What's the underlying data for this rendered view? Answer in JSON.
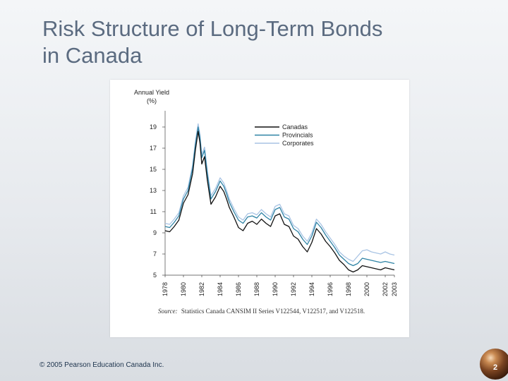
{
  "slide": {
    "title_line1": "Risk Structure of Long-Term Bonds",
    "title_line2": "in Canada",
    "footer": "© 2005 Pearson Education Canada Inc.",
    "page_number": "2"
  },
  "chart_data": {
    "type": "line",
    "title": "",
    "ylabel_line1": "Annual Yield",
    "ylabel_line2": "(%)",
    "xlabel": "",
    "ylim": [
      5,
      20
    ],
    "xlim": [
      1978,
      2003
    ],
    "yticks": [
      5,
      7,
      9,
      11,
      13,
      15,
      17,
      19
    ],
    "xticks": [
      "1978",
      "1980",
      "1982",
      "1984",
      "1986",
      "1988",
      "1990",
      "1992",
      "1994",
      "1996",
      "1998",
      "2000",
      "2002",
      "2003"
    ],
    "legend_position": "top-right",
    "source_label": "Source:",
    "source_text": "Statistics Canada CANSIM II Series V122544, V122517, and V122518.",
    "series": [
      {
        "name": "Canadas",
        "color": "#111111",
        "x": [
          1978,
          1978.5,
          1979,
          1979.5,
          1980,
          1980.5,
          1981,
          1981.3,
          1981.6,
          1981.8,
          1982,
          1982.3,
          1982.6,
          1983,
          1983.5,
          1984,
          1984.4,
          1984.7,
          1985,
          1985.5,
          1986,
          1986.5,
          1987,
          1987.5,
          1988,
          1988.5,
          1989,
          1989.5,
          1990,
          1990.5,
          1991,
          1991.5,
          1992,
          1992.5,
          1993,
          1993.5,
          1994,
          1994.5,
          1995,
          1995.5,
          1996,
          1996.5,
          1997,
          1997.5,
          1998,
          1998.5,
          1999,
          1999.5,
          2000,
          2000.5,
          2001,
          2001.5,
          2002,
          2002.5,
          2003
        ],
        "values": [
          9.2,
          9.1,
          9.6,
          10.2,
          11.8,
          12.6,
          14.6,
          16.8,
          18.6,
          17.5,
          15.5,
          16.2,
          14.0,
          11.7,
          12.4,
          13.4,
          12.9,
          12.2,
          11.4,
          10.5,
          9.5,
          9.2,
          9.9,
          10.1,
          9.8,
          10.3,
          9.9,
          9.6,
          10.6,
          10.8,
          9.8,
          9.6,
          8.7,
          8.4,
          7.7,
          7.2,
          8.1,
          9.4,
          8.9,
          8.2,
          7.7,
          7.1,
          6.4,
          6.0,
          5.5,
          5.3,
          5.5,
          5.9,
          5.8,
          5.7,
          5.6,
          5.5,
          5.7,
          5.6,
          5.5
        ]
      },
      {
        "name": "Provincials",
        "color": "#2e83a5",
        "x": [
          1978,
          1978.5,
          1979,
          1979.5,
          1980,
          1980.5,
          1981,
          1981.3,
          1981.6,
          1981.8,
          1982,
          1982.3,
          1982.6,
          1983,
          1983.5,
          1984,
          1984.4,
          1984.7,
          1985,
          1985.5,
          1986,
          1986.5,
          1987,
          1987.5,
          1988,
          1988.5,
          1989,
          1989.5,
          1990,
          1990.5,
          1991,
          1991.5,
          1992,
          1992.5,
          1993,
          1993.5,
          1994,
          1994.5,
          1995,
          1995.5,
          1996,
          1996.5,
          1997,
          1997.5,
          1998,
          1998.5,
          1999,
          1999.5,
          2000,
          2000.5,
          2001,
          2001.5,
          2002,
          2002.5,
          2003
        ],
        "values": [
          9.6,
          9.5,
          10.0,
          10.6,
          12.2,
          13.0,
          15.1,
          17.3,
          19.0,
          18.0,
          16.1,
          16.8,
          14.6,
          12.2,
          12.9,
          13.9,
          13.4,
          12.7,
          11.9,
          11.0,
          10.2,
          9.9,
          10.5,
          10.6,
          10.4,
          10.9,
          10.5,
          10.2,
          11.2,
          11.4,
          10.5,
          10.3,
          9.4,
          9.1,
          8.4,
          7.9,
          8.7,
          10.0,
          9.5,
          8.8,
          8.2,
          7.6,
          6.9,
          6.5,
          6.1,
          5.9,
          6.1,
          6.6,
          6.5,
          6.4,
          6.3,
          6.2,
          6.3,
          6.2,
          6.1
        ]
      },
      {
        "name": "Corporates",
        "color": "#a9c4e4",
        "x": [
          1978,
          1978.5,
          1979,
          1979.5,
          1980,
          1980.5,
          1981,
          1981.3,
          1981.6,
          1981.8,
          1982,
          1982.3,
          1982.6,
          1983,
          1983.5,
          1984,
          1984.4,
          1984.7,
          1985,
          1985.5,
          1986,
          1986.5,
          1987,
          1987.5,
          1988,
          1988.5,
          1989,
          1989.5,
          1990,
          1990.5,
          1991,
          1991.5,
          1992,
          1992.5,
          1993,
          1993.5,
          1994,
          1994.5,
          1995,
          1995.5,
          1996,
          1996.5,
          1997,
          1997.5,
          1998,
          1998.5,
          1999,
          1999.5,
          2000,
          2000.5,
          2001,
          2001.5,
          2002,
          2002.5,
          2003
        ],
        "values": [
          9.9,
          9.8,
          10.3,
          10.9,
          12.5,
          13.3,
          15.4,
          17.6,
          19.3,
          18.3,
          16.4,
          17.1,
          14.9,
          12.5,
          13.2,
          14.2,
          13.7,
          13.0,
          12.2,
          11.3,
          10.5,
          10.2,
          10.8,
          10.9,
          10.7,
          11.2,
          10.8,
          10.5,
          11.5,
          11.7,
          10.8,
          10.6,
          9.7,
          9.4,
          8.7,
          8.2,
          9.0,
          10.3,
          9.8,
          9.1,
          8.5,
          7.9,
          7.2,
          6.8,
          6.5,
          6.3,
          6.8,
          7.3,
          7.4,
          7.2,
          7.1,
          7.0,
          7.2,
          7.0,
          6.9
        ]
      }
    ]
  }
}
